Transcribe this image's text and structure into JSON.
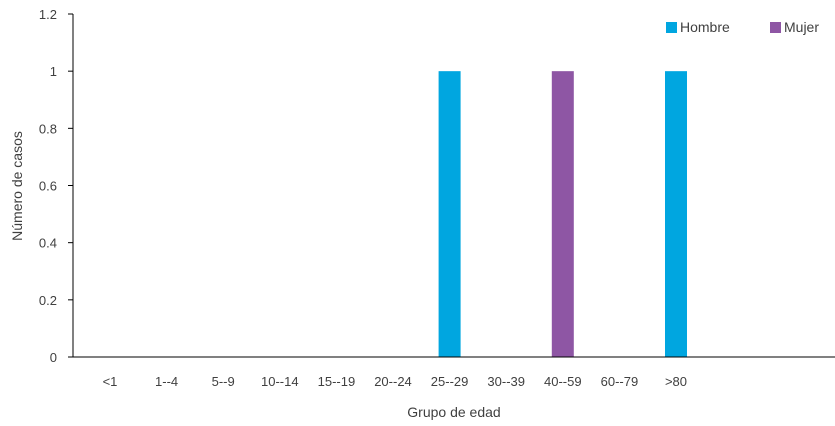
{
  "chart_data": {
    "type": "bar",
    "title": "",
    "xlabel": "Grupo de edad",
    "ylabel": "Número de casos",
    "ylim": [
      0,
      1.2
    ],
    "yticks": [
      "0",
      "0.2",
      "0.4",
      "0.6",
      "0.8",
      "1",
      "1.2"
    ],
    "ytick_values": [
      0,
      0.2,
      0.4,
      0.6,
      0.8,
      1.0,
      1.2
    ],
    "categories": [
      "<1",
      "1--4",
      "5--9",
      "10--14",
      "15--19",
      "20--24",
      "25--29",
      "30--39",
      "40--59",
      "60--79",
      ">80"
    ],
    "series": [
      {
        "name": "Hombre",
        "color": "#00A6E0",
        "values": [
          0,
          0,
          0,
          0,
          0,
          0,
          1,
          0,
          0,
          0,
          1
        ]
      },
      {
        "name": "Mujer",
        "color": "#8E56A4",
        "values": [
          0,
          0,
          0,
          0,
          0,
          0,
          0,
          0,
          1,
          0,
          0
        ]
      }
    ],
    "grid": false,
    "legend_position": "top-right",
    "axis_color": "#000000"
  }
}
